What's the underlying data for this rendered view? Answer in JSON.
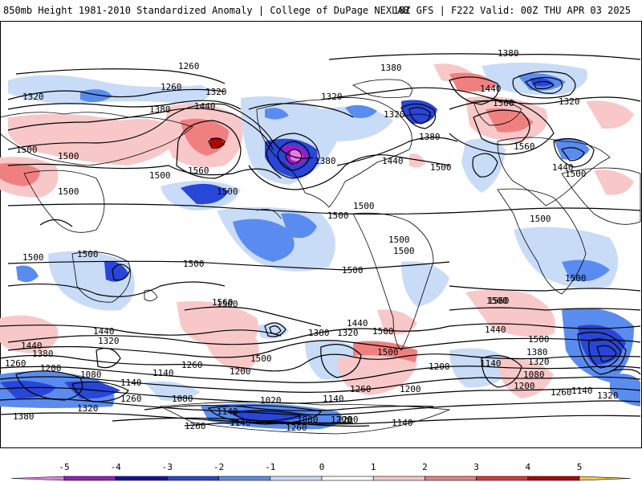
{
  "header": {
    "title": "850mb Height 1981-2010 Standardized Anomaly | College of DuPage NEXLAB",
    "run": "18Z GFS | F222 Valid: 00Z THU APR 03 2025"
  },
  "colorbar": {
    "ticks": [
      "-5",
      "-4",
      "-3",
      "-2",
      "-1",
      "0",
      "1",
      "2",
      "3",
      "4",
      "5"
    ],
    "colors": [
      "#e87ae8",
      "#9a1cc8",
      "#1414a8",
      "#2846d8",
      "#5a8cf0",
      "#c8dcf8",
      "#ffffff",
      "#f8c8c8",
      "#f08080",
      "#e03838",
      "#b40000",
      "#f0a020",
      "#f8c83c"
    ]
  },
  "contour_labels": [
    "1260",
    "1320",
    "1260",
    "1320",
    "1380",
    "1440",
    "1380",
    "1320",
    "1320",
    "1380",
    "1380",
    "1440",
    "1500",
    "1320",
    "1500",
    "1500",
    "1500",
    "1500",
    "1560",
    "1500",
    "1380",
    "1440",
    "1500",
    "1500",
    "1560",
    "1440",
    "1500",
    "1500",
    "1500",
    "1500",
    "1500",
    "1500",
    "1500",
    "1500",
    "1500",
    "1500",
    "1500",
    "1500",
    "1560",
    "1560",
    "1440",
    "1440",
    "1500",
    "1380",
    "1320",
    "1380",
    "1440",
    "1500",
    "1380",
    "1320",
    "1320",
    "1440",
    "1500",
    "1500",
    "1260",
    "1200",
    "1080",
    "1140",
    "1140",
    "1260",
    "1200",
    "1200",
    "1140",
    "1080",
    "1080",
    "1200",
    "1260",
    "1200",
    "1200",
    "1260",
    "1140",
    "1380",
    "1320",
    "1260",
    "1260",
    "1140",
    "1140",
    "1080",
    "1020",
    "1140",
    "1200",
    "1260",
    "1140",
    "1320"
  ]
}
